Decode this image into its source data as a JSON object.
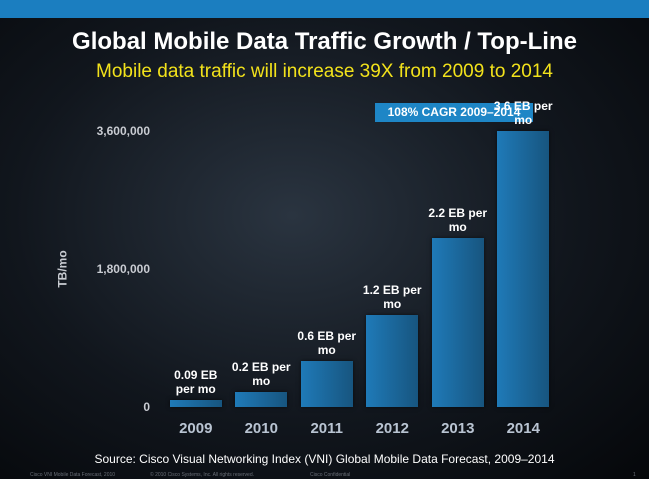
{
  "chart_data": {
    "type": "bar",
    "title": "Global Mobile Data Traffic Growth / Top-Line",
    "subtitle": "Mobile data traffic will increase 39X from 2009 to 2014",
    "y_label": "TB/mo",
    "annotation": "108% CAGR 2009–2014",
    "source": "Source: Cisco Visual Networking Index (VNI) Global Mobile Data Forecast, 2009–2014",
    "categories": [
      "2009",
      "2010",
      "2011",
      "2012",
      "2013",
      "2014"
    ],
    "values": [
      90000,
      200000,
      600000,
      1200000,
      2200000,
      3600000
    ],
    "value_labels": [
      "0.09 EB per mo",
      "0.2 EB per mo",
      "0.6 EB per mo",
      "1.2 EB per mo",
      "2.2 EB per mo",
      "3.6 EB per mo"
    ],
    "color": "#1f7ab8",
    "ylim": [
      0,
      3600000
    ],
    "yticks": [
      0,
      {
        "value": 1800000,
        "label": "1,800,000"
      },
      {
        "value": 3600000,
        "label": "3,600,000"
      }
    ]
  },
  "footer": [
    "Cisco VNI Mobile Data Forecast, 2010",
    "© 2010 Cisco Systems, Inc. All rights reserved.",
    "Cisco Confidential",
    "1"
  ]
}
